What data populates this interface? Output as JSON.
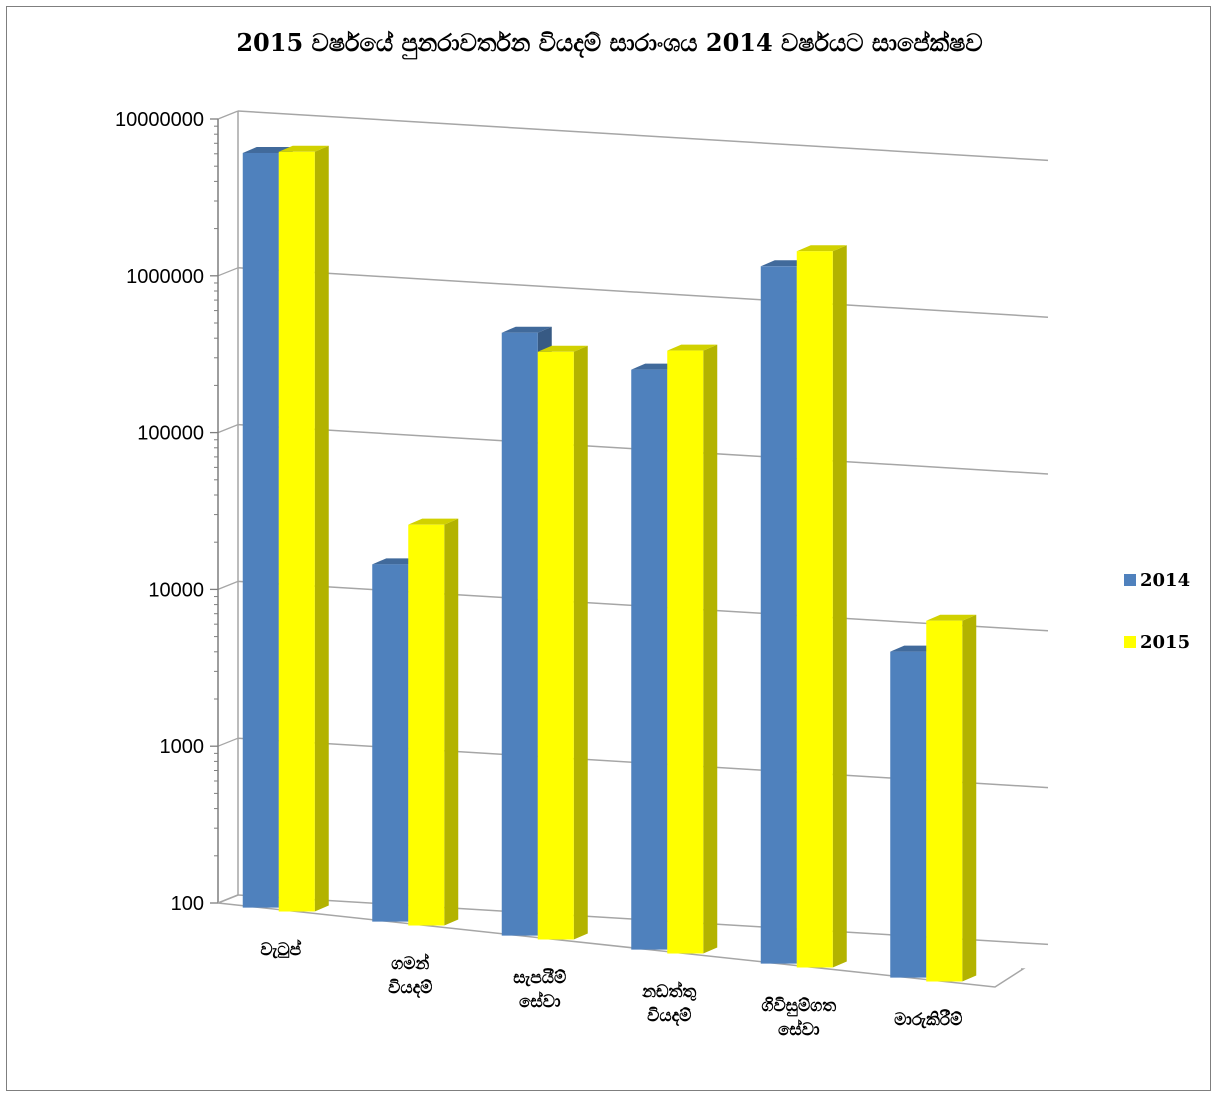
{
  "chart_data": {
    "type": "bar",
    "title": "2015 වර්ෂයේ පුනරාවර්තන වියදම් සාරාංශය 2014 වර්ෂයට සාපේක්ෂව",
    "xlabel": "",
    "ylabel": "",
    "yscale": "log",
    "ylim": [
      100,
      10000000
    ],
    "yticks": [
      "10000000",
      "1000000",
      "100000",
      "10000",
      "1000",
      "100"
    ],
    "categories": [
      [
        "වැටුප්"
      ],
      [
        "ගමන්",
        "වියදම්"
      ],
      [
        "සැපයීම්",
        "සේවා"
      ],
      [
        "නඩත්තු",
        "වියදම්"
      ],
      [
        "ගිවිසුම්ගත",
        "සේවා"
      ],
      [
        "මාරුකිරීම්"
      ]
    ],
    "series": [
      {
        "name": "2014",
        "color": "#4f81bd",
        "values": [
          6500000,
          19000,
          700000,
          500000,
          2800000,
          12000
        ]
      },
      {
        "name": "2015",
        "color": "#ffff00",
        "values": [
          7000000,
          36000,
          560000,
          700000,
          3700000,
          20000
        ]
      }
    ],
    "grid": true,
    "legend": "right"
  }
}
